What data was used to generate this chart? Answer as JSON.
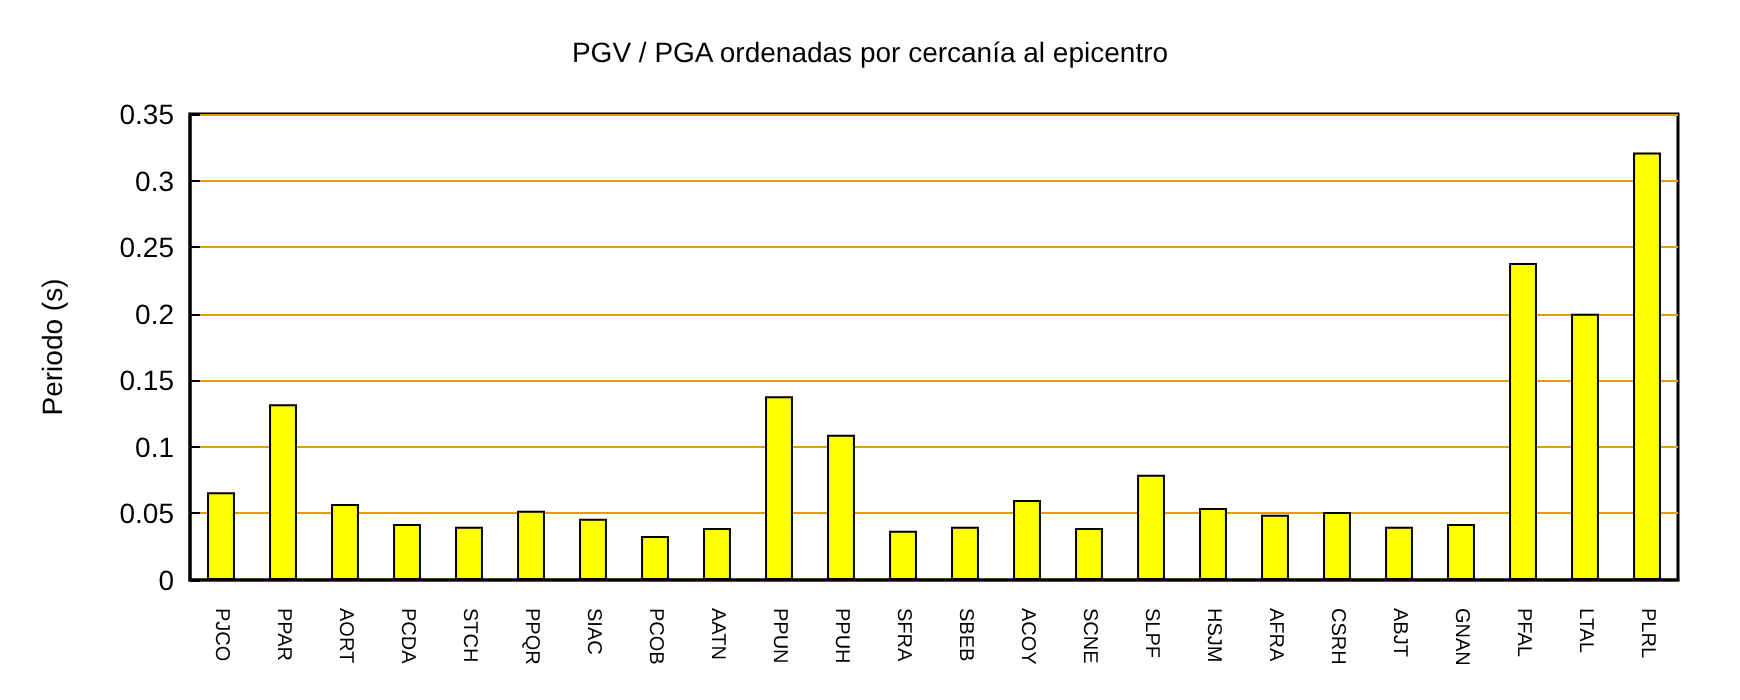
{
  "chart_data": {
    "type": "bar",
    "title": "PGV / PGA ordenadas por cercanía al epicentro",
    "ylabel": "Periodo (s)",
    "categories": [
      "PJCO",
      "PPAR",
      "AORT",
      "PCDA",
      "STCH",
      "PPQR",
      "SIAC",
      "PCOB",
      "AATN",
      "PPUN",
      "PPUH",
      "SFRA",
      "SBEB",
      "ACOY",
      "SCNE",
      "SLPF",
      "HSJM",
      "AFRA",
      "CSRH",
      "ABJT",
      "GNAN",
      "PFAL",
      "LTAL",
      "PLRL"
    ],
    "values": [
      0.066,
      0.132,
      0.057,
      0.042,
      0.04,
      0.052,
      0.046,
      0.033,
      0.039,
      0.138,
      0.109,
      0.037,
      0.04,
      0.06,
      0.039,
      0.079,
      0.054,
      0.049,
      0.051,
      0.04,
      0.042,
      0.238,
      0.2,
      0.321
    ],
    "color": "#ffff00",
    "ylim": [
      0,
      0.35
    ],
    "yticks": [
      0,
      0.05,
      0.1,
      0.15,
      0.2,
      0.25,
      0.3,
      0.35
    ],
    "grid": "y"
  }
}
